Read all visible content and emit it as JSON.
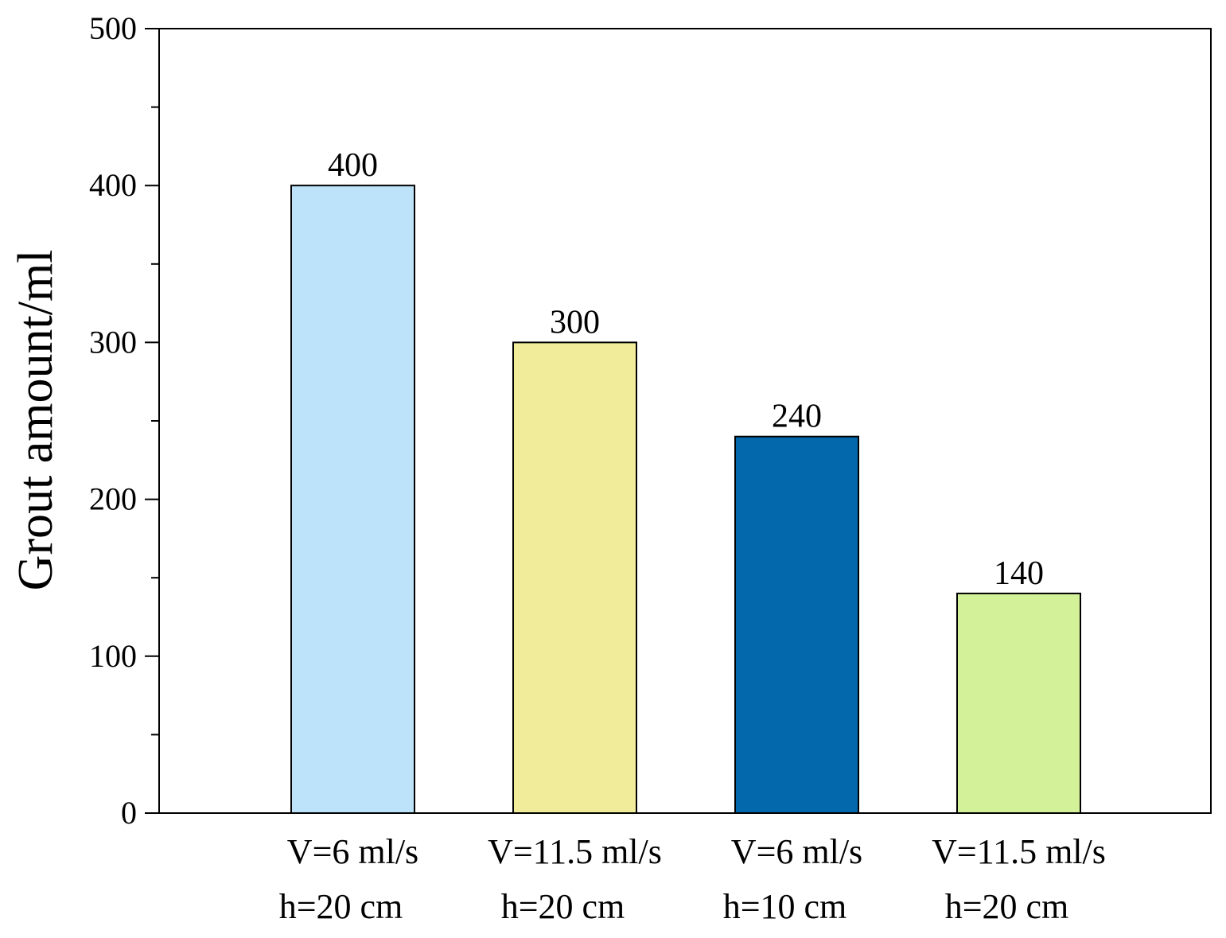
{
  "chart_data": {
    "type": "bar",
    "title": "",
    "xlabel": "",
    "ylabel": "Grout amount/ml",
    "ylim": [
      0,
      500
    ],
    "yticks": [
      0,
      100,
      200,
      300,
      400,
      500
    ],
    "grid": false,
    "categories": [
      {
        "line1": "V=6 ml/s",
        "line2": "h=20 cm"
      },
      {
        "line1": "V=11.5 ml/s",
        "line2": "h=20 cm"
      },
      {
        "line1": "V=6 ml/s",
        "line2": "h=10 cm"
      },
      {
        "line1": "V=11.5 ml/s",
        "line2": "h=20 cm"
      }
    ],
    "values": [
      400,
      300,
      240,
      140
    ],
    "data_labels": [
      "400",
      "300",
      "240",
      "140"
    ],
    "colors": [
      "#bde3fb",
      "#f0ec99",
      "#0369ac",
      "#d2f199"
    ],
    "axis_color": "#000000"
  }
}
